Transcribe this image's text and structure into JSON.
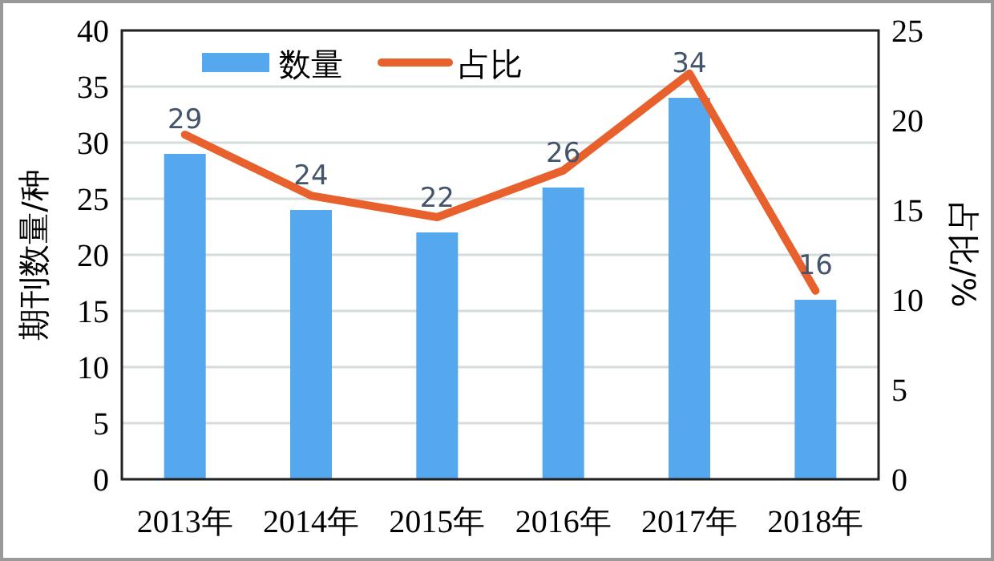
{
  "chart_data": {
    "type": "bar",
    "categories": [
      "2013年",
      "2014年",
      "2015年",
      "2016年",
      "2017年",
      "2018年"
    ],
    "series": [
      {
        "name": "数量",
        "color": "#56a8ee",
        "values": [
          29,
          24,
          22,
          26,
          34,
          16
        ],
        "value_labels": [
          "29",
          "24",
          "22",
          "26",
          "34",
          "16"
        ]
      },
      {
        "name": "占比",
        "type": "line",
        "axis": "y2",
        "color": "#e8602c",
        "values": [
          19.2,
          15.8,
          14.6,
          17.2,
          22.6,
          10.5
        ]
      }
    ],
    "ylabel": "期刊数量/种",
    "y2label": "占比/%",
    "ylim": [
      0,
      40
    ],
    "yticks": [
      0,
      5,
      10,
      15,
      20,
      25,
      30,
      35,
      40
    ],
    "y2lim": [
      0,
      25
    ],
    "y2ticks": [
      0,
      5,
      10,
      15,
      20,
      25
    ],
    "grid": "y",
    "legend": "top left",
    "marker": "none",
    "line_style": "solid"
  }
}
